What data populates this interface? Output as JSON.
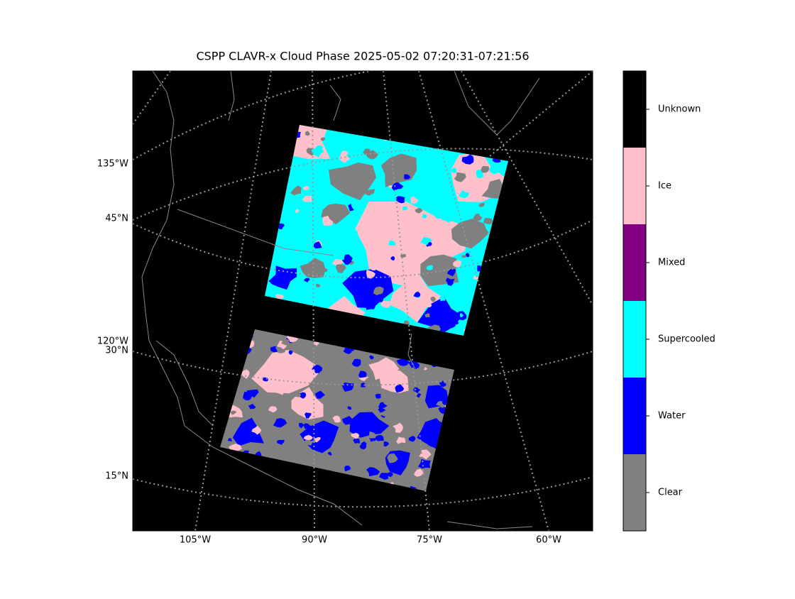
{
  "title": "CSPP CLAVR-x Cloud Phase 2025-05-02 07:20:31-07:21:56",
  "map": {
    "left_labels": [
      "135°W",
      "45°N",
      "120°W",
      "30°N",
      "15°N"
    ],
    "bottom_labels": [
      "105°W",
      "90°W",
      "75°W",
      "60°W"
    ]
  },
  "colorbar": {
    "categories": [
      {
        "label": "Unknown",
        "color": "#000000"
      },
      {
        "label": "Ice",
        "color": "#ffc0cb"
      },
      {
        "label": "Mixed",
        "color": "#800080"
      },
      {
        "label": "Supercooled",
        "color": "#00ffff"
      },
      {
        "label": "Water",
        "color": "#0000ff"
      },
      {
        "label": "Clear",
        "color": "#808080"
      }
    ]
  }
}
